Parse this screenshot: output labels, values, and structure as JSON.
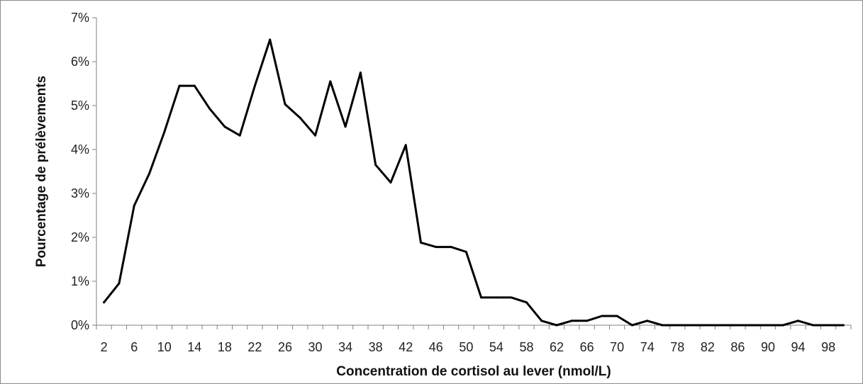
{
  "chart_data": {
    "type": "line",
    "title": "",
    "xlabel": "Concentration de cortisol au lever (nmol/L)",
    "ylabel": "Pourcentage de prélèvements",
    "y_ticks": [
      "0%",
      "1%",
      "2%",
      "3%",
      "4%",
      "5%",
      "6%",
      "7%"
    ],
    "ylim": [
      0,
      7
    ],
    "x_tick_labels": [
      "2",
      "6",
      "10",
      "14",
      "18",
      "22",
      "26",
      "30",
      "34",
      "38",
      "42",
      "46",
      "50",
      "54",
      "58",
      "62",
      "66",
      "70",
      "74",
      "78",
      "82",
      "86",
      "90",
      "94",
      "98"
    ],
    "grid": false,
    "legend": "none",
    "line_color": "#000000",
    "series": [
      {
        "x": [
          2,
          4,
          6,
          8,
          10,
          12,
          14,
          16,
          18,
          20,
          22,
          24,
          26,
          28,
          30,
          32,
          34,
          36,
          38,
          40,
          42,
          44,
          46,
          48,
          50,
          52,
          54,
          56,
          58,
          60,
          62,
          64,
          66,
          68,
          70,
          72,
          74,
          76,
          78,
          80,
          82,
          84,
          86,
          88,
          90,
          92,
          94,
          96,
          98,
          100
        ],
        "values": [
          0.52,
          0.95,
          2.72,
          3.45,
          4.4,
          5.45,
          5.45,
          4.93,
          4.52,
          4.32,
          5.45,
          6.5,
          5.03,
          4.72,
          4.32,
          5.55,
          4.52,
          5.75,
          3.65,
          3.25,
          4.1,
          1.88,
          1.78,
          1.78,
          1.67,
          0.63,
          0.63,
          0.63,
          0.52,
          0.1,
          0.0,
          0.1,
          0.1,
          0.21,
          0.21,
          0.0,
          0.1,
          0.0,
          0.0,
          0.0,
          0.0,
          0.0,
          0.0,
          0.0,
          0.0,
          0.0,
          0.1,
          0.0,
          0.0,
          0.0
        ]
      }
    ]
  }
}
